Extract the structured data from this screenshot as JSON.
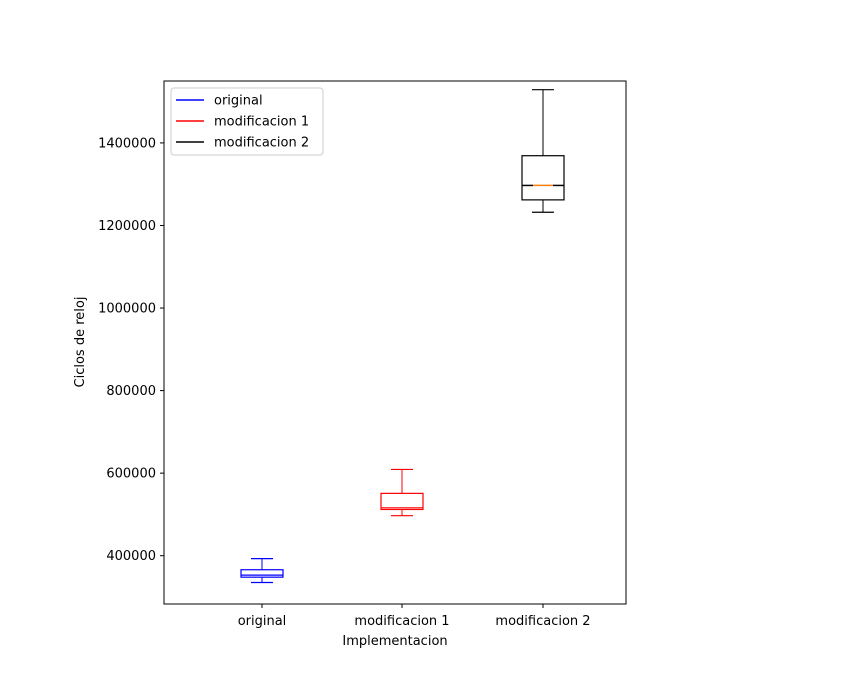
{
  "chart_data": {
    "type": "box",
    "title": "",
    "xlabel": "Implementacion",
    "ylabel": "Ciclos de reloj",
    "categories": [
      "original",
      "modificacion 1",
      "modificacion 2"
    ],
    "ylim": [
      283000,
      1550000
    ],
    "yticks": [
      {
        "value": 400000,
        "label": "400000"
      },
      {
        "value": 600000,
        "label": "600000"
      },
      {
        "value": 800000,
        "label": "800000"
      },
      {
        "value": 1000000,
        "label": "1000000"
      },
      {
        "value": 1200000,
        "label": "1200000"
      },
      {
        "value": 1400000,
        "label": "1400000"
      }
    ],
    "grid": false,
    "legend": {
      "position": "top-left",
      "entries": [
        {
          "label": "original",
          "color": "#0000ff"
        },
        {
          "label": "modificacion 1",
          "color": "#ff0000"
        },
        {
          "label": "modificacion 2",
          "color": "#000000"
        }
      ]
    },
    "series": [
      {
        "category": "original",
        "color": "#0000ff",
        "whisker_low": 335000,
        "q1": 348000,
        "median": 353000,
        "q3": 366000,
        "whisker_high": 393000,
        "median_color": "#0000ff"
      },
      {
        "category": "modificacion 1",
        "color": "#ff0000",
        "whisker_low": 497000,
        "q1": 512000,
        "median": 516000,
        "q3": 551000,
        "whisker_high": 609000,
        "median_color": "#ff0000"
      },
      {
        "category": "modificacion 2",
        "color": "#000000",
        "whisker_low": 1232000,
        "q1": 1262000,
        "median": 1297000,
        "q3": 1369000,
        "whisker_high": 1529000,
        "median_color": "#ff7f0e"
      }
    ]
  }
}
